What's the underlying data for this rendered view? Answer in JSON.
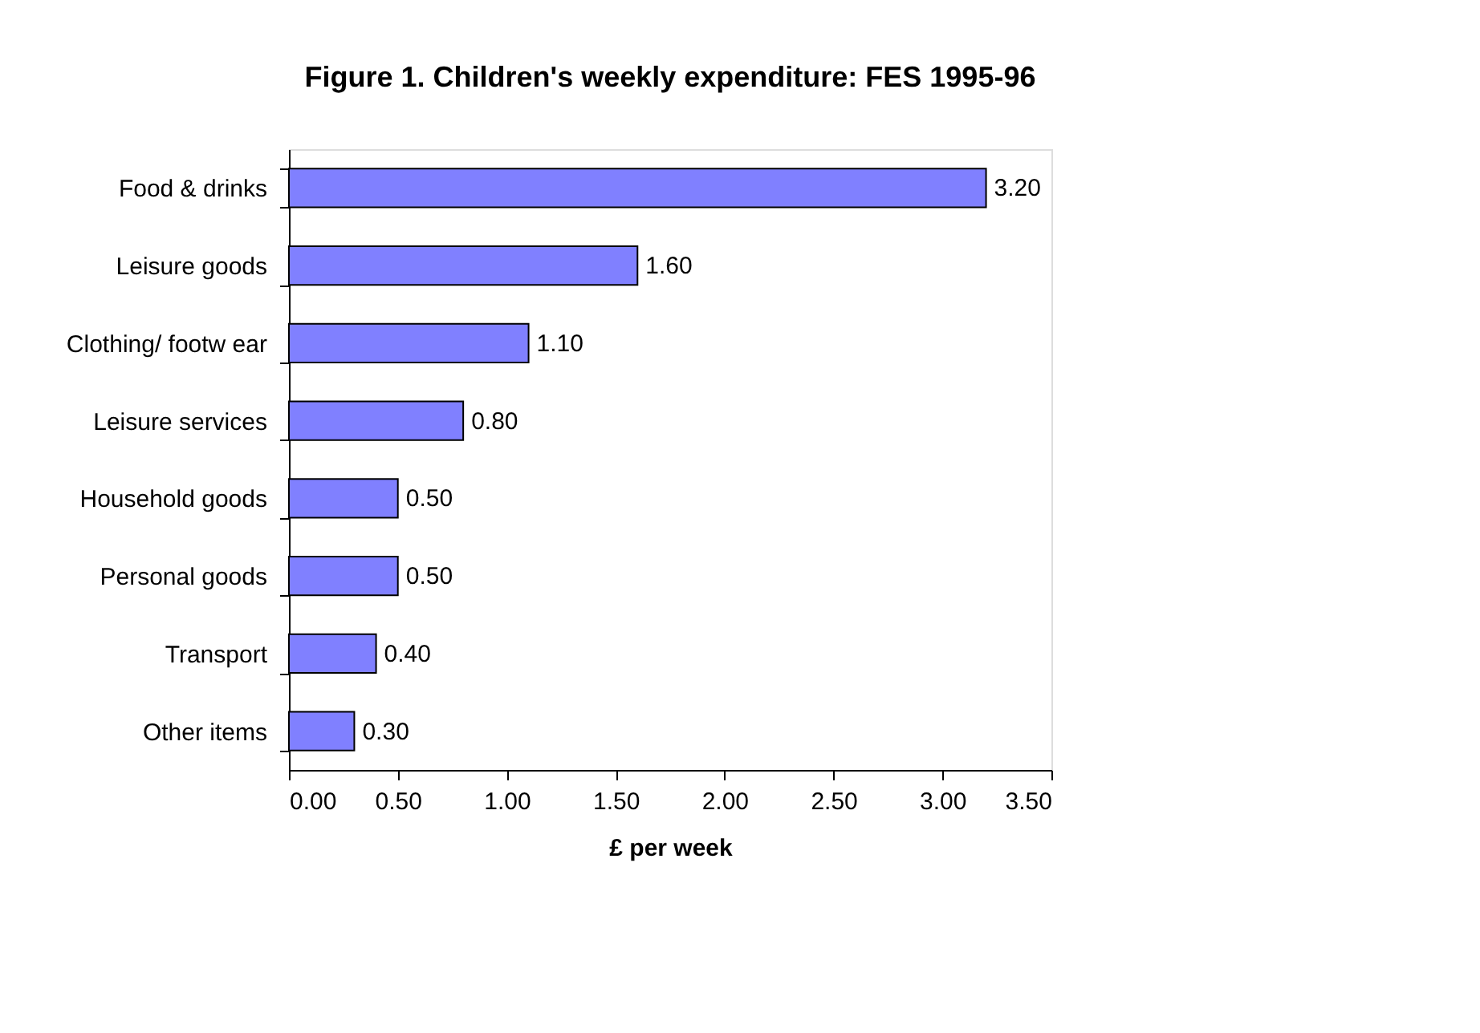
{
  "chart_data": {
    "type": "bar",
    "orientation": "horizontal",
    "title": "Figure 1. Children's weekly expenditure: FES 1995-96",
    "xlabel": "£ per week",
    "categories": [
      "Food & drinks",
      "Leisure goods",
      "Clothing/ footw ear",
      "Leisure services",
      "Household goods",
      "Personal goods",
      "Transport",
      "Other items"
    ],
    "values": [
      3.2,
      1.6,
      1.1,
      0.8,
      0.5,
      0.5,
      0.4,
      0.3
    ],
    "value_labels": [
      "3.20",
      "1.60",
      "1.10",
      "0.80",
      "0.50",
      "0.50",
      "0.40",
      "0.30"
    ],
    "color": "#8080ff",
    "xlim": [
      0,
      3.5
    ],
    "xticks": [
      {
        "value": 0,
        "label": "0.00"
      },
      {
        "value": 0.5,
        "label": "0.50"
      },
      {
        "value": 1,
        "label": "1.00"
      },
      {
        "value": 1.5,
        "label": "1.50"
      },
      {
        "value": 2,
        "label": "2.00"
      },
      {
        "value": 2.5,
        "label": "2.50"
      },
      {
        "value": 3,
        "label": "3.00"
      },
      {
        "value": 3.5,
        "label": "3.50"
      }
    ],
    "grid": false
  }
}
